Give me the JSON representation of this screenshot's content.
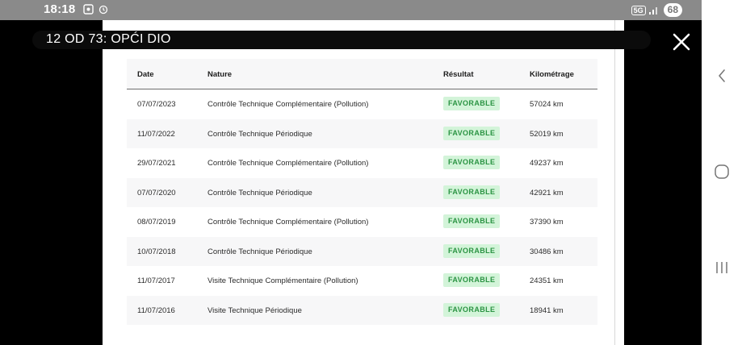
{
  "status_bar": {
    "time": "18:18",
    "network": "5G",
    "battery": "68"
  },
  "video": {
    "title": "12 OD 73: OPĆI DIO"
  },
  "table": {
    "headers": {
      "date": "Date",
      "nature": "Nature",
      "result": "Résultat",
      "mileage": "Kilométrage"
    },
    "rows": [
      {
        "date": "07/07/2023",
        "nature": "Contrôle Technique Complémentaire (Pollution)",
        "result": "FAVORABLE",
        "mileage": "57024 km"
      },
      {
        "date": "11/07/2022",
        "nature": "Contrôle Technique Périodique",
        "result": "FAVORABLE",
        "mileage": "52019 km"
      },
      {
        "date": "29/07/2021",
        "nature": "Contrôle Technique Complémentaire (Pollution)",
        "result": "FAVORABLE",
        "mileage": "49237 km"
      },
      {
        "date": "07/07/2020",
        "nature": "Contrôle Technique Périodique",
        "result": "FAVORABLE",
        "mileage": "42921 km"
      },
      {
        "date": "08/07/2019",
        "nature": "Contrôle Technique Complémentaire (Pollution)",
        "result": "FAVORABLE",
        "mileage": "37390 km"
      },
      {
        "date": "10/07/2018",
        "nature": "Contrôle Technique Périodique",
        "result": "FAVORABLE",
        "mileage": "30486 km"
      },
      {
        "date": "11/07/2017",
        "nature": "Visite Technique Complémentaire (Pollution)",
        "result": "FAVORABLE",
        "mileage": "24351 km"
      },
      {
        "date": "11/07/2016",
        "nature": "Visite Technique Périodique",
        "result": "FAVORABLE",
        "mileage": "18941 km"
      }
    ]
  },
  "icons": {
    "close": "close-icon",
    "back": "back-icon",
    "home": "home-icon",
    "recents": "recents-icon"
  },
  "colors": {
    "badge_bg": "#d3f4d9",
    "badge_text": "#2b9443",
    "status_bar": "#8a8a8a"
  }
}
